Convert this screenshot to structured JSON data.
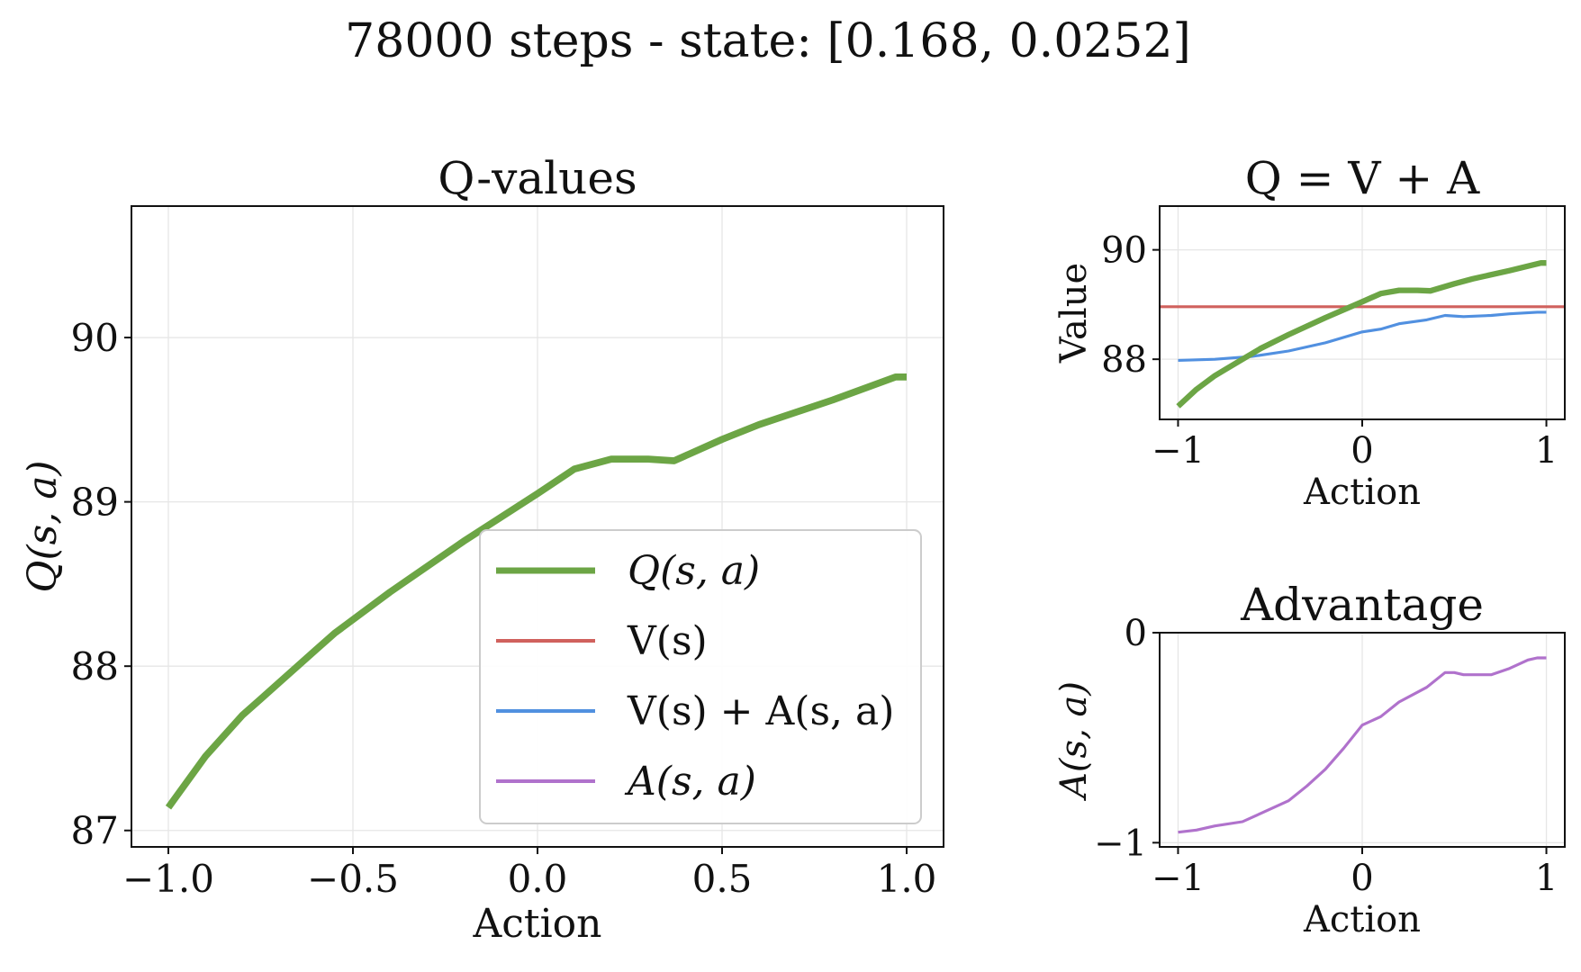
{
  "figure": {
    "suptitle": "78000 steps - state: [0.168, 0.0252]"
  },
  "colors": {
    "q": "#6ca545",
    "v": "#d0615d",
    "vpa": "#5190e0",
    "adv": "#b072cc"
  },
  "chart_data": [
    {
      "id": "q-values",
      "type": "line",
      "title": "Q-values",
      "xlabel": "Action",
      "ylabel": "Q(s, a)",
      "xlim": [
        -1.1,
        1.1
      ],
      "ylim": [
        86.9,
        90.8
      ],
      "xticks": [
        -1.0,
        -0.5,
        0.0,
        0.5,
        1.0
      ],
      "xtick_labels": [
        "−1.0",
        "−0.5",
        "0.0",
        "0.5",
        "1.0"
      ],
      "yticks": [
        87,
        88,
        89,
        90
      ],
      "ytick_labels": [
        "87",
        "88",
        "89",
        "90"
      ],
      "grid": true,
      "legend": {
        "placement": "lower-right",
        "entries": [
          {
            "label": "Q(s, a)",
            "color_key": "q",
            "width": 7
          },
          {
            "label": "V(s)",
            "color_key": "v",
            "width": 4
          },
          {
            "label": "V(s) + A(s, a)",
            "color_key": "vpa",
            "width": 4
          },
          {
            "label": "A(s, a)",
            "color_key": "adv",
            "width": 4
          }
        ]
      },
      "series": [
        {
          "key": "q",
          "x": [
            -1.0,
            -0.9,
            -0.8,
            -0.75,
            -0.6,
            -0.55,
            -0.4,
            -0.2,
            0.0,
            0.1,
            0.2,
            0.3,
            0.37,
            0.5,
            0.6,
            0.8,
            0.97,
            1.0
          ],
          "y": [
            87.14,
            87.45,
            87.7,
            87.8,
            88.1,
            88.2,
            88.45,
            88.76,
            89.05,
            89.2,
            89.26,
            89.26,
            89.25,
            89.38,
            89.47,
            89.62,
            89.76,
            89.76
          ]
        }
      ]
    },
    {
      "id": "q-equals-v-plus-a",
      "type": "line",
      "title": "Q = V + A",
      "xlabel": "Action",
      "ylabel": "Value",
      "xlim": [
        -1.1,
        1.1
      ],
      "ylim": [
        86.9,
        90.8
      ],
      "xticks": [
        -1,
        0,
        1
      ],
      "xtick_labels": [
        "−1",
        "0",
        "1"
      ],
      "yticks": [
        88,
        90
      ],
      "ytick_labels": [
        "88",
        "90"
      ],
      "grid": true,
      "series": [
        {
          "key": "q",
          "x": [
            -1.0,
            -0.9,
            -0.8,
            -0.75,
            -0.6,
            -0.55,
            -0.4,
            -0.2,
            0.0,
            0.1,
            0.2,
            0.3,
            0.37,
            0.5,
            0.6,
            0.8,
            0.97,
            1.0
          ],
          "y": [
            87.14,
            87.45,
            87.7,
            87.8,
            88.1,
            88.2,
            88.45,
            88.76,
            89.05,
            89.2,
            89.26,
            89.26,
            89.25,
            89.38,
            89.47,
            89.62,
            89.76,
            89.76
          ]
        },
        {
          "key": "v",
          "x": [
            -1.1,
            1.1
          ],
          "y": [
            88.96,
            88.96
          ]
        },
        {
          "key": "vpa",
          "x": [
            -1.0,
            -0.8,
            -0.6,
            -0.4,
            -0.2,
            0.0,
            0.1,
            0.2,
            0.35,
            0.45,
            0.55,
            0.7,
            0.8,
            0.95,
            1.0
          ],
          "y": [
            87.98,
            88.0,
            88.05,
            88.15,
            88.3,
            88.5,
            88.55,
            88.65,
            88.72,
            88.8,
            88.78,
            88.8,
            88.83,
            88.86,
            88.86
          ]
        }
      ]
    },
    {
      "id": "advantage",
      "type": "line",
      "title": "Advantage",
      "xlabel": "Action",
      "ylabel": "A(s, a)",
      "xlim": [
        -1.1,
        1.1
      ],
      "ylim": [
        -1.02,
        0.0
      ],
      "xticks": [
        -1,
        0,
        1
      ],
      "xtick_labels": [
        "−1",
        "0",
        "1"
      ],
      "yticks": [
        -1,
        0
      ],
      "ytick_labels": [
        "−1",
        "0"
      ],
      "grid": true,
      "series": [
        {
          "key": "adv",
          "x": [
            -1.0,
            -0.9,
            -0.8,
            -0.65,
            -0.55,
            -0.4,
            -0.3,
            -0.2,
            -0.1,
            0.0,
            0.05,
            0.1,
            0.2,
            0.35,
            0.45,
            0.5,
            0.55,
            0.7,
            0.8,
            0.9,
            0.95,
            1.0
          ],
          "y": [
            -0.95,
            -0.94,
            -0.92,
            -0.9,
            -0.86,
            -0.8,
            -0.73,
            -0.65,
            -0.55,
            -0.44,
            -0.42,
            -0.4,
            -0.33,
            -0.26,
            -0.19,
            -0.19,
            -0.2,
            -0.2,
            -0.17,
            -0.13,
            -0.12,
            -0.12
          ]
        }
      ]
    }
  ]
}
